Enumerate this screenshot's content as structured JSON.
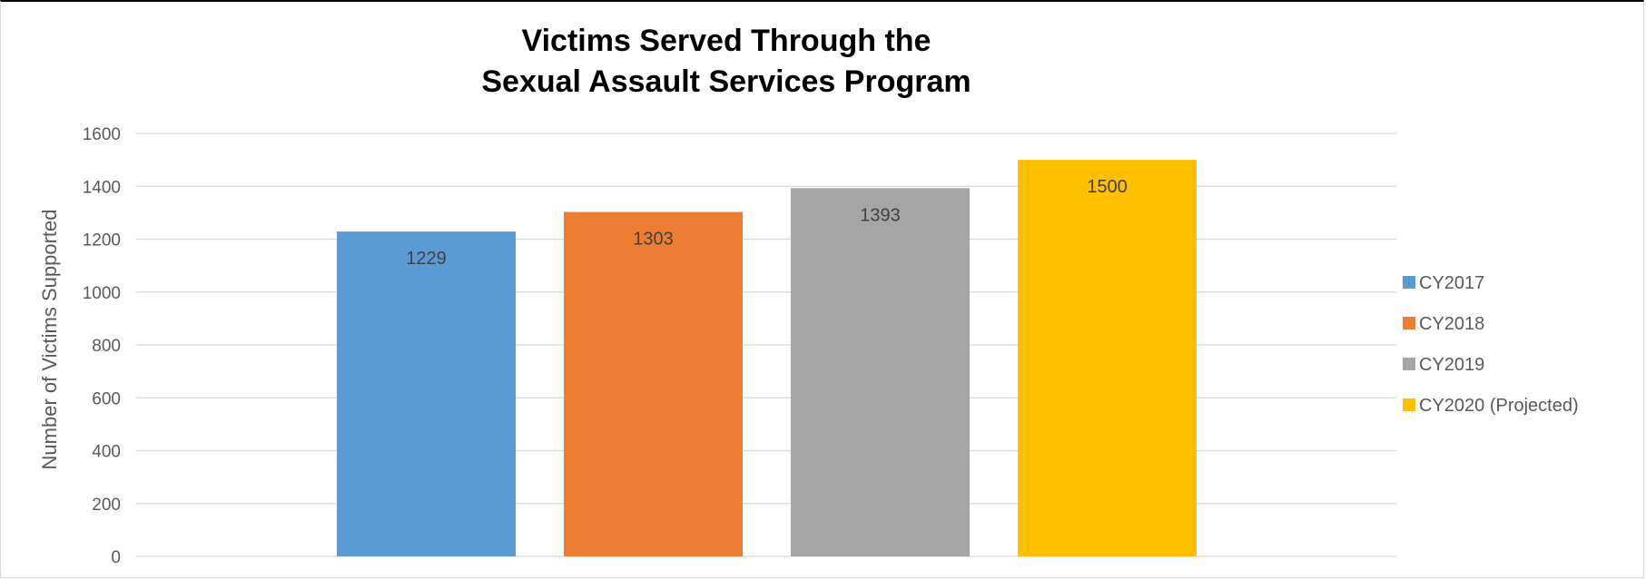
{
  "chart_data": {
    "type": "bar",
    "title_line1": "Victims Served Through the",
    "title_line2": "Sexual Assault Services Program",
    "ylabel": "Number of Victims Supported",
    "ylim": [
      0,
      1600
    ],
    "yticks": [
      0,
      200,
      400,
      600,
      800,
      1000,
      1200,
      1400,
      1600
    ],
    "grid": true,
    "legend_position": "right",
    "series": [
      {
        "name": "CY2017",
        "value": 1229,
        "color": "#5b9bd5"
      },
      {
        "name": "CY2018",
        "value": 1303,
        "color": "#ed7d31"
      },
      {
        "name": "CY2019",
        "value": 1393,
        "color": "#a5a5a5"
      },
      {
        "name": "CY2020 (Projected)",
        "value": 1500,
        "color": "#ffc000"
      }
    ]
  }
}
